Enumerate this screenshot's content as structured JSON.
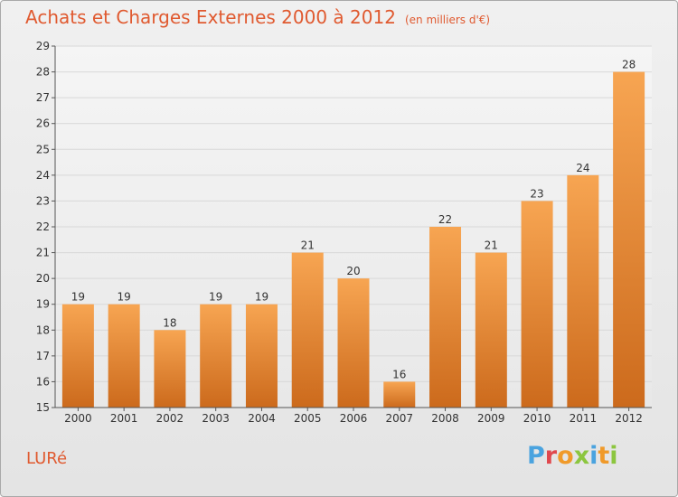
{
  "header": {
    "title": "Achats et Charges Externes 2000 à 2012",
    "unit": "(en milliers d'€)"
  },
  "footer": {
    "commune": "LURé",
    "brand": [
      "P",
      "r",
      "o",
      "x",
      "i",
      "t",
      "i"
    ]
  },
  "colors": {
    "title": "#e05a30",
    "bar_top": "#f7a552",
    "bar_bottom": "#cc6a1c",
    "grid": "#d8d8d8",
    "brand": [
      "#4aa3df",
      "#e0484e",
      "#f09a2a",
      "#8cc63f",
      "#4aa3df",
      "#f09a2a",
      "#8cc63f"
    ]
  },
  "chart_data": {
    "type": "bar",
    "title": "Achats et Charges Externes 2000 à 2012",
    "subtitle": "(en milliers d'€)",
    "categories": [
      "2000",
      "2001",
      "2002",
      "2003",
      "2004",
      "2005",
      "2006",
      "2007",
      "2008",
      "2009",
      "2010",
      "2011",
      "2012"
    ],
    "values": [
      19,
      19,
      18,
      19,
      19,
      21,
      20,
      16,
      22,
      21,
      23,
      24,
      28
    ],
    "ylim": [
      15,
      29
    ],
    "yticks": [
      15,
      16,
      17,
      18,
      19,
      20,
      21,
      22,
      23,
      24,
      25,
      26,
      27,
      28,
      29
    ],
    "grid": true,
    "data_labels": true
  }
}
